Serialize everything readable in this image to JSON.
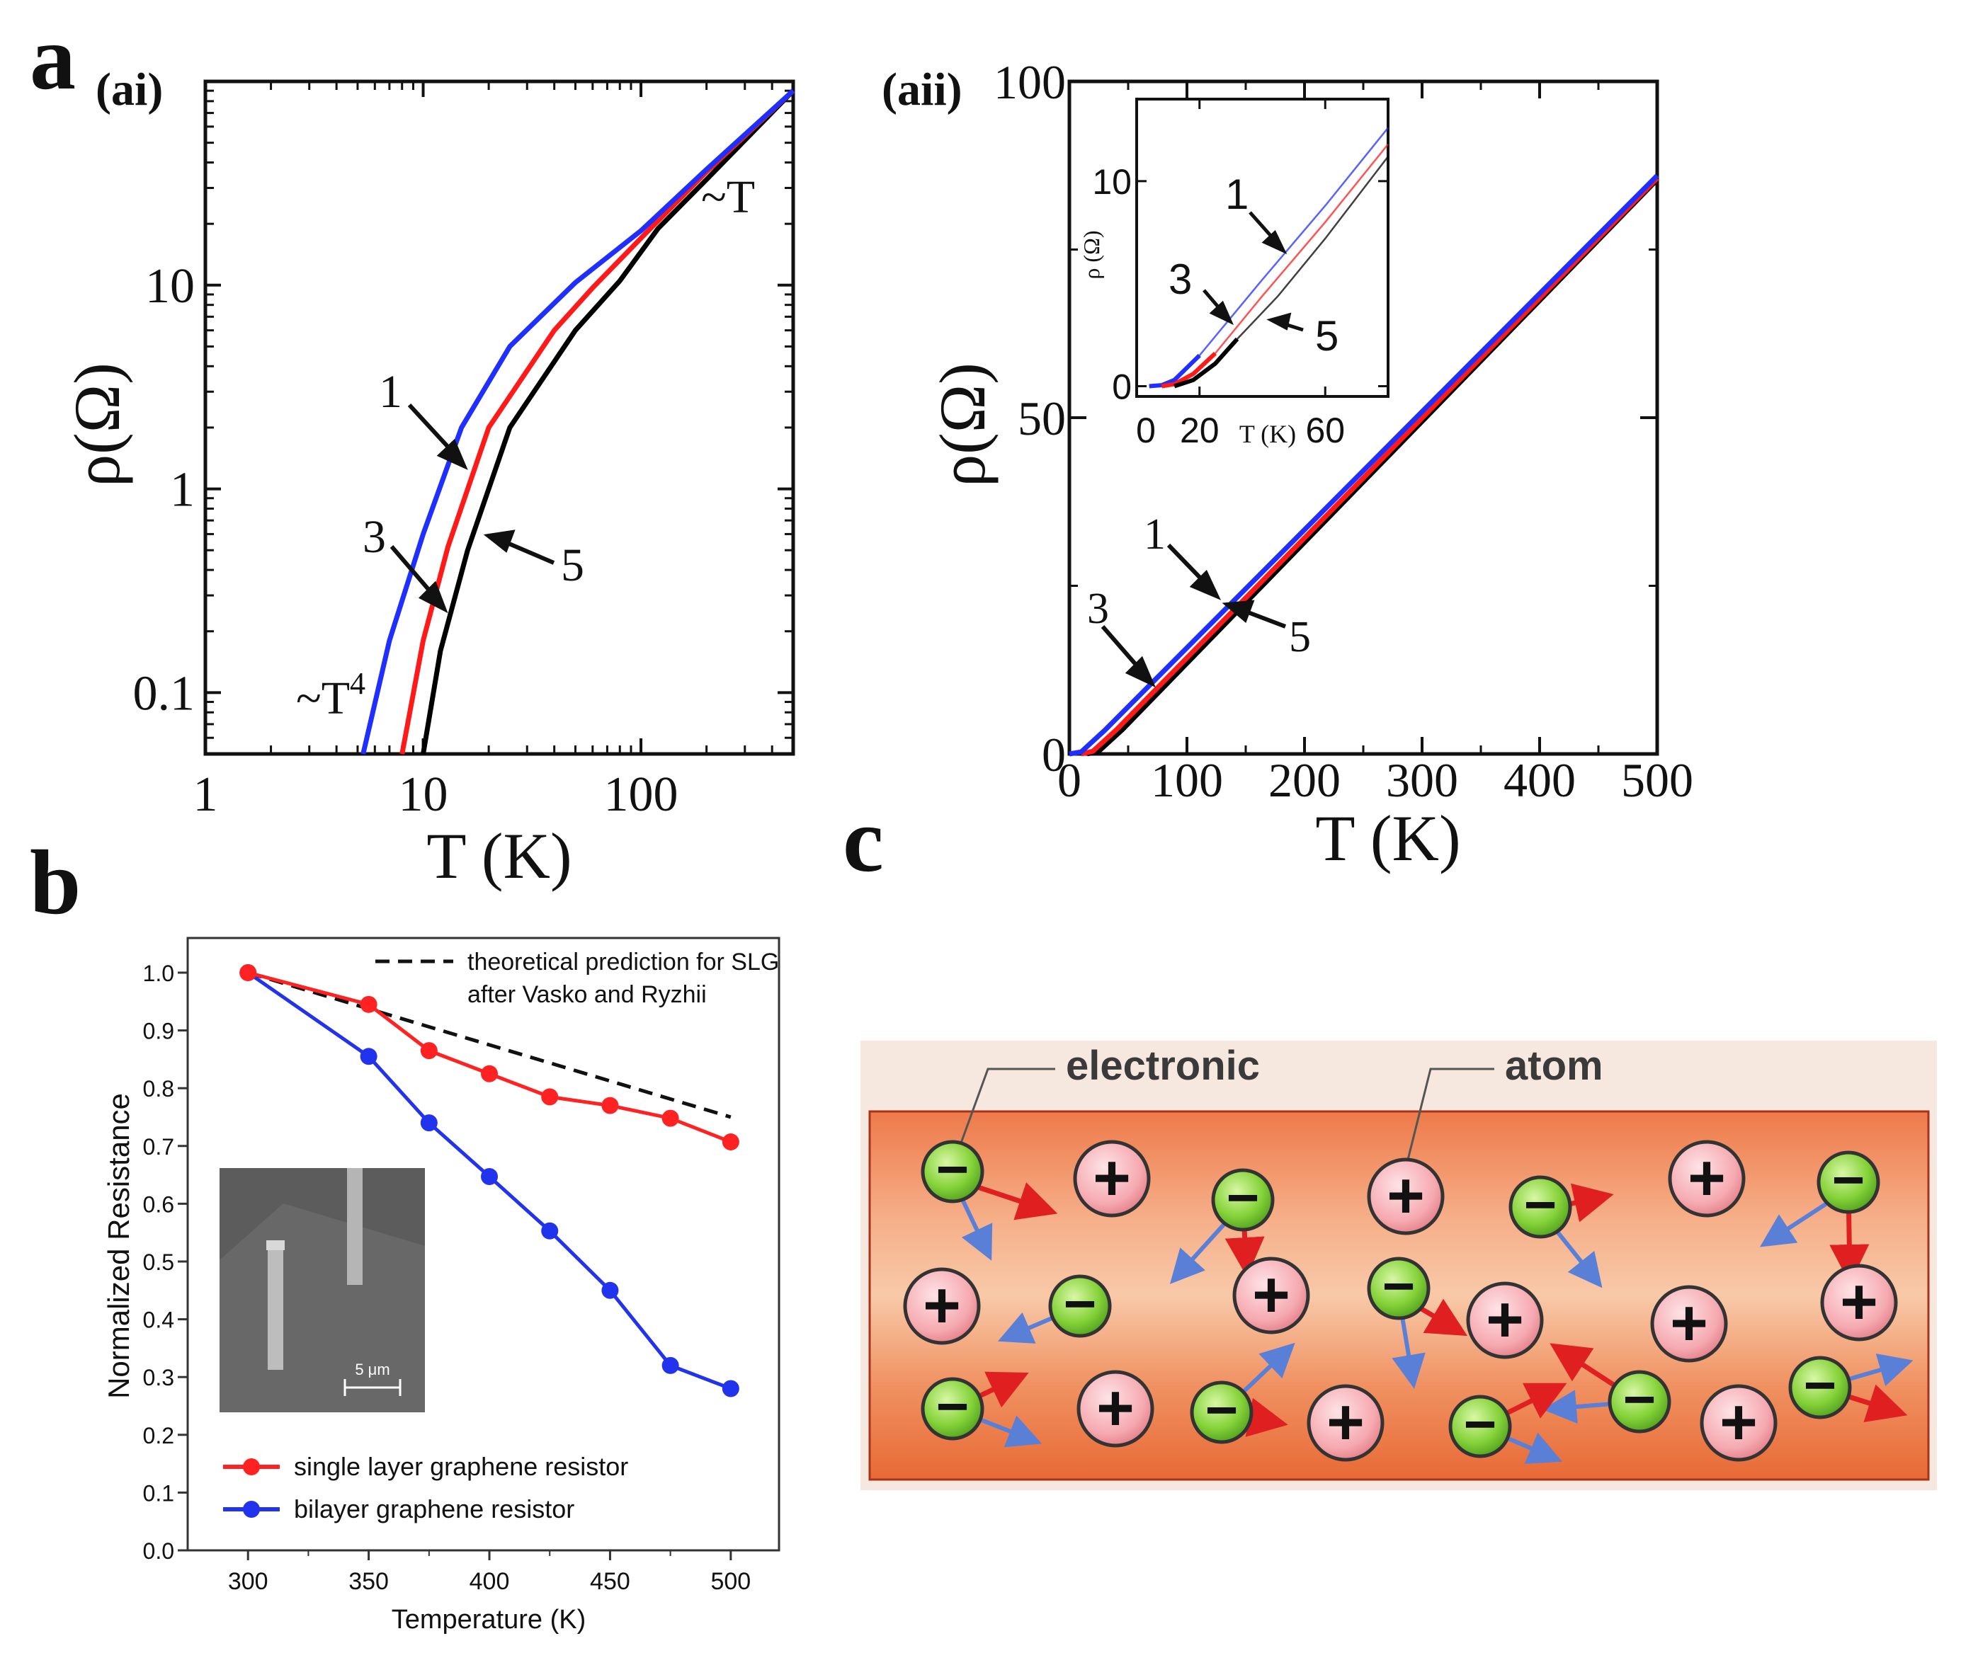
{
  "panels": {
    "a": "a",
    "ai": "(ai)",
    "aii": "(aii)",
    "b": "b",
    "c": "c"
  },
  "colors": {
    "curve1": "#1f2fff",
    "curve3": "#ff1a1a",
    "curve5": "#000000",
    "sl": "#ff2222",
    "bl": "#2233ee",
    "theory": "#111111"
  },
  "chart_data": [
    {
      "id": "ai",
      "type": "line",
      "xscale": "log",
      "yscale": "log",
      "xlabel": "T (K)",
      "ylabel": "ρ(Ω)",
      "xlim": [
        1,
        500
      ],
      "ylim": [
        0.05,
        100
      ],
      "xticks": [
        {
          "v": 1,
          "t": "1"
        },
        {
          "v": 10,
          "t": "10"
        },
        {
          "v": 100,
          "t": "100"
        }
      ],
      "yticks": [
        {
          "v": 0.1,
          "t": "0.1"
        },
        {
          "v": 1,
          "t": "1"
        },
        {
          "v": 10,
          "t": "10"
        }
      ],
      "series": [
        {
          "name": "1",
          "color": "#1f2fff",
          "x": [
            5.3,
            7,
            10,
            15,
            25,
            50,
            100,
            200,
            500
          ],
          "y": [
            0.05,
            0.18,
            0.6,
            2,
            5,
            10.3,
            18.5,
            37,
            90
          ]
        },
        {
          "name": "3",
          "color": "#ff1a1a",
          "x": [
            8,
            10,
            13,
            20,
            40,
            60,
            100,
            200,
            500
          ],
          "y": [
            0.05,
            0.18,
            0.52,
            2,
            6,
            9.7,
            17,
            36,
            90
          ]
        },
        {
          "name": "5",
          "color": "#000000",
          "x": [
            10,
            12,
            16,
            25,
            50,
            80,
            120,
            200,
            500
          ],
          "y": [
            0.05,
            0.16,
            0.5,
            2,
            6,
            10.5,
            19,
            33,
            90
          ]
        }
      ],
      "annotations": [
        "1",
        "3",
        "5",
        "~T",
        "~T4"
      ]
    },
    {
      "id": "aii",
      "type": "line",
      "xlabel": "T (K)",
      "ylabel": "ρ(Ω)",
      "xlim": [
        0,
        500
      ],
      "ylim": [
        0,
        100
      ],
      "xticks": [
        {
          "v": 0,
          "t": "0"
        },
        {
          "v": 100,
          "t": "100"
        },
        {
          "v": 200,
          "t": "200"
        },
        {
          "v": 300,
          "t": "300"
        },
        {
          "v": 400,
          "t": "400"
        },
        {
          "v": 500,
          "t": "500"
        }
      ],
      "yticks": [
        {
          "v": 0,
          "t": "0"
        },
        {
          "v": 50,
          "t": "50"
        },
        {
          "v": 100,
          "t": "100"
        }
      ],
      "series": [
        {
          "name": "1",
          "color": "#1f2fff",
          "x": [
            0,
            10,
            30,
            500
          ],
          "y": [
            0,
            0.3,
            3.5,
            86
          ]
        },
        {
          "name": "3",
          "color": "#ff1a1a",
          "x": [
            10,
            20,
            40,
            500
          ],
          "y": [
            0,
            0.4,
            3.6,
            85.6
          ]
        },
        {
          "name": "5",
          "color": "#000000",
          "x": [
            15,
            25,
            45,
            500
          ],
          "y": [
            0,
            0.4,
            3.6,
            85.4
          ]
        }
      ],
      "annotations": [
        "1",
        "3",
        "5"
      ],
      "inset": {
        "xlabel": "T (K)",
        "ylabel": "ρ (Ω)",
        "xlim": [
          0,
          80
        ],
        "ylim": [
          -0.5,
          14
        ],
        "xticks": [
          {
            "v": 20,
            "t": "20"
          },
          {
            "v": 60,
            "t": "60"
          }
        ],
        "yticks": [
          {
            "v": 0,
            "t": "0"
          },
          {
            "v": 10,
            "t": "10"
          }
        ],
        "series": [
          {
            "name": "1",
            "color": "#1f2fff",
            "x": [
              4,
              8,
              12,
              20,
              40,
              60,
              80
            ],
            "y": [
              0,
              0.05,
              0.3,
              1.5,
              5.2,
              8.8,
              12.6
            ]
          },
          {
            "name": "3",
            "color": "#ff1a1a",
            "x": [
              8,
              12,
              18,
              25,
              40,
              60,
              80
            ],
            "y": [
              0,
              0.1,
              0.6,
              1.6,
              4.4,
              8.0,
              11.8
            ]
          },
          {
            "name": "5",
            "color": "#000000",
            "x": [
              12,
              18,
              25,
              32,
              45,
              60,
              80
            ],
            "y": [
              0,
              0.3,
              1.1,
              2.3,
              4.4,
              7.2,
              11.2
            ]
          }
        ],
        "annotations": [
          "1",
          "3",
          "5"
        ]
      }
    },
    {
      "id": "b",
      "type": "line",
      "xlabel": "Temperature (K)",
      "ylabel": "Normalized  Resistance",
      "xlim": [
        275,
        520
      ],
      "ylim": [
        0.0,
        1.06
      ],
      "xticks": [
        {
          "v": 300,
          "t": "300"
        },
        {
          "v": 350,
          "t": "350"
        },
        {
          "v": 400,
          "t": "400"
        },
        {
          "v": 450,
          "t": "450"
        },
        {
          "v": 500,
          "t": "500"
        }
      ],
      "yticks": [
        {
          "v": 0.0,
          "t": "0.0"
        },
        {
          "v": 0.1,
          "t": "0.1"
        },
        {
          "v": 0.2,
          "t": "0.2"
        },
        {
          "v": 0.3,
          "t": "0.3"
        },
        {
          "v": 0.4,
          "t": "0.4"
        },
        {
          "v": 0.5,
          "t": "0.5"
        },
        {
          "v": 0.6,
          "t": "0.6"
        },
        {
          "v": 0.7,
          "t": "0.7"
        },
        {
          "v": 0.8,
          "t": "0.8"
        },
        {
          "v": 0.9,
          "t": "0.9"
        },
        {
          "v": 1.0,
          "t": "1.0"
        }
      ],
      "categories": [
        300,
        350,
        375,
        400,
        425,
        450,
        475,
        500
      ],
      "series": [
        {
          "name": "single layer graphene resistor",
          "color": "#ff2222",
          "values": [
            1.0,
            0.945,
            0.865,
            0.825,
            0.785,
            0.77,
            0.748,
            0.707
          ]
        },
        {
          "name": "bilayer graphene resistor",
          "color": "#2233ee",
          "values": [
            1.0,
            0.855,
            0.74,
            0.647,
            0.553,
            0.45,
            0.32,
            0.28
          ]
        },
        {
          "name": "theoretical prediction for SLG after  Vasko and Ryzhii",
          "color": "#111111",
          "dashed": true,
          "x": [
            300,
            500
          ],
          "y": [
            1.0,
            0.75
          ]
        }
      ],
      "legend_top_line1": "theoretical prediction for SLG",
      "legend_top_line2": "after  Vasko and Ryzhii",
      "legend_sl": "single layer graphene resistor",
      "legend_bl": "bilayer graphene resistor",
      "inset_scale": "5 μm"
    }
  ],
  "c": {
    "label_electronic": "electronic",
    "label_atom": "atom",
    "minus": "−",
    "plus": "+"
  }
}
